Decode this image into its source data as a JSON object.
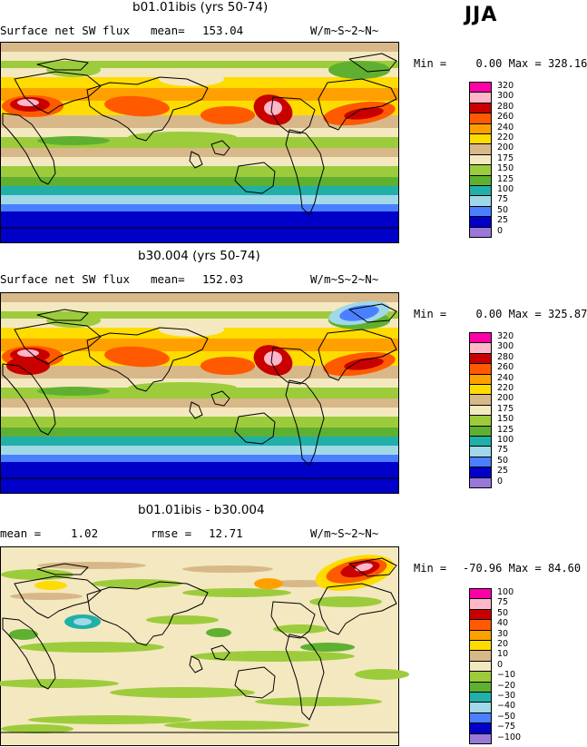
{
  "season": "JJA",
  "panels": [
    {
      "title": "b01.01ibis (yrs 50-74)",
      "left_label": "Surface net SW flux",
      "stat_label": "mean=",
      "stat_value": "153.04",
      "units": "W/m~S~2~N~",
      "min_label": "Min =",
      "min_value": "0.00",
      "max_label": "Max =",
      "max_value": "328.16",
      "legend_levels": [
        "320",
        "300",
        "280",
        "260",
        "240",
        "220",
        "200",
        "175",
        "150",
        "125",
        "100",
        "75",
        "50",
        "25",
        "0"
      ],
      "legend_colors": [
        "#ff00a8",
        "#ffb6c8",
        "#c80000",
        "#ff5a00",
        "#ffa000",
        "#ffdc00",
        "#d8b888",
        "#f4e8c0",
        "#9ccc3c",
        "#5fb031",
        "#20b0a8",
        "#a0d8e8",
        "#4a80ff",
        "#0000c8",
        "#9a78d8"
      ]
    },
    {
      "title": "b30.004 (yrs 50-74)",
      "left_label": "Surface net SW flux",
      "stat_label": "mean=",
      "stat_value": "152.03",
      "units": "W/m~S~2~N~",
      "min_label": "Min =",
      "min_value": "0.00",
      "max_label": "Max =",
      "max_value": "325.87",
      "legend_levels": [
        "320",
        "300",
        "280",
        "260",
        "240",
        "220",
        "200",
        "175",
        "150",
        "125",
        "100",
        "75",
        "50",
        "25",
        "0"
      ],
      "legend_colors": [
        "#ff00a8",
        "#ffb6c8",
        "#c80000",
        "#ff5a00",
        "#ffa000",
        "#ffdc00",
        "#d8b888",
        "#f4e8c0",
        "#9ccc3c",
        "#5fb031",
        "#20b0a8",
        "#a0d8e8",
        "#4a80ff",
        "#0000c8",
        "#9a78d8"
      ]
    },
    {
      "title": "b01.01ibis - b30.004",
      "left_label": "mean =",
      "left_value": "1.02",
      "stat_label": "rmse =",
      "stat_value": "12.71",
      "units": "W/m~S~2~N~",
      "min_label": "Min =",
      "min_value": "-70.96",
      "max_label": "Max =",
      "max_value": "84.60",
      "legend_levels": [
        "100",
        "75",
        "50",
        "40",
        "30",
        "20",
        "10",
        "0",
        "−10",
        "−20",
        "−30",
        "−40",
        "−50",
        "−75",
        "−100"
      ],
      "legend_colors": [
        "#ff00a8",
        "#ffb6c8",
        "#c80000",
        "#ff5a00",
        "#ffa000",
        "#ffdc00",
        "#d8b888",
        "#f4e8c0",
        "#9ccc3c",
        "#5fb031",
        "#20b0a8",
        "#a0d8e8",
        "#4a80ff",
        "#0000c8",
        "#9a78d8"
      ]
    }
  ]
}
